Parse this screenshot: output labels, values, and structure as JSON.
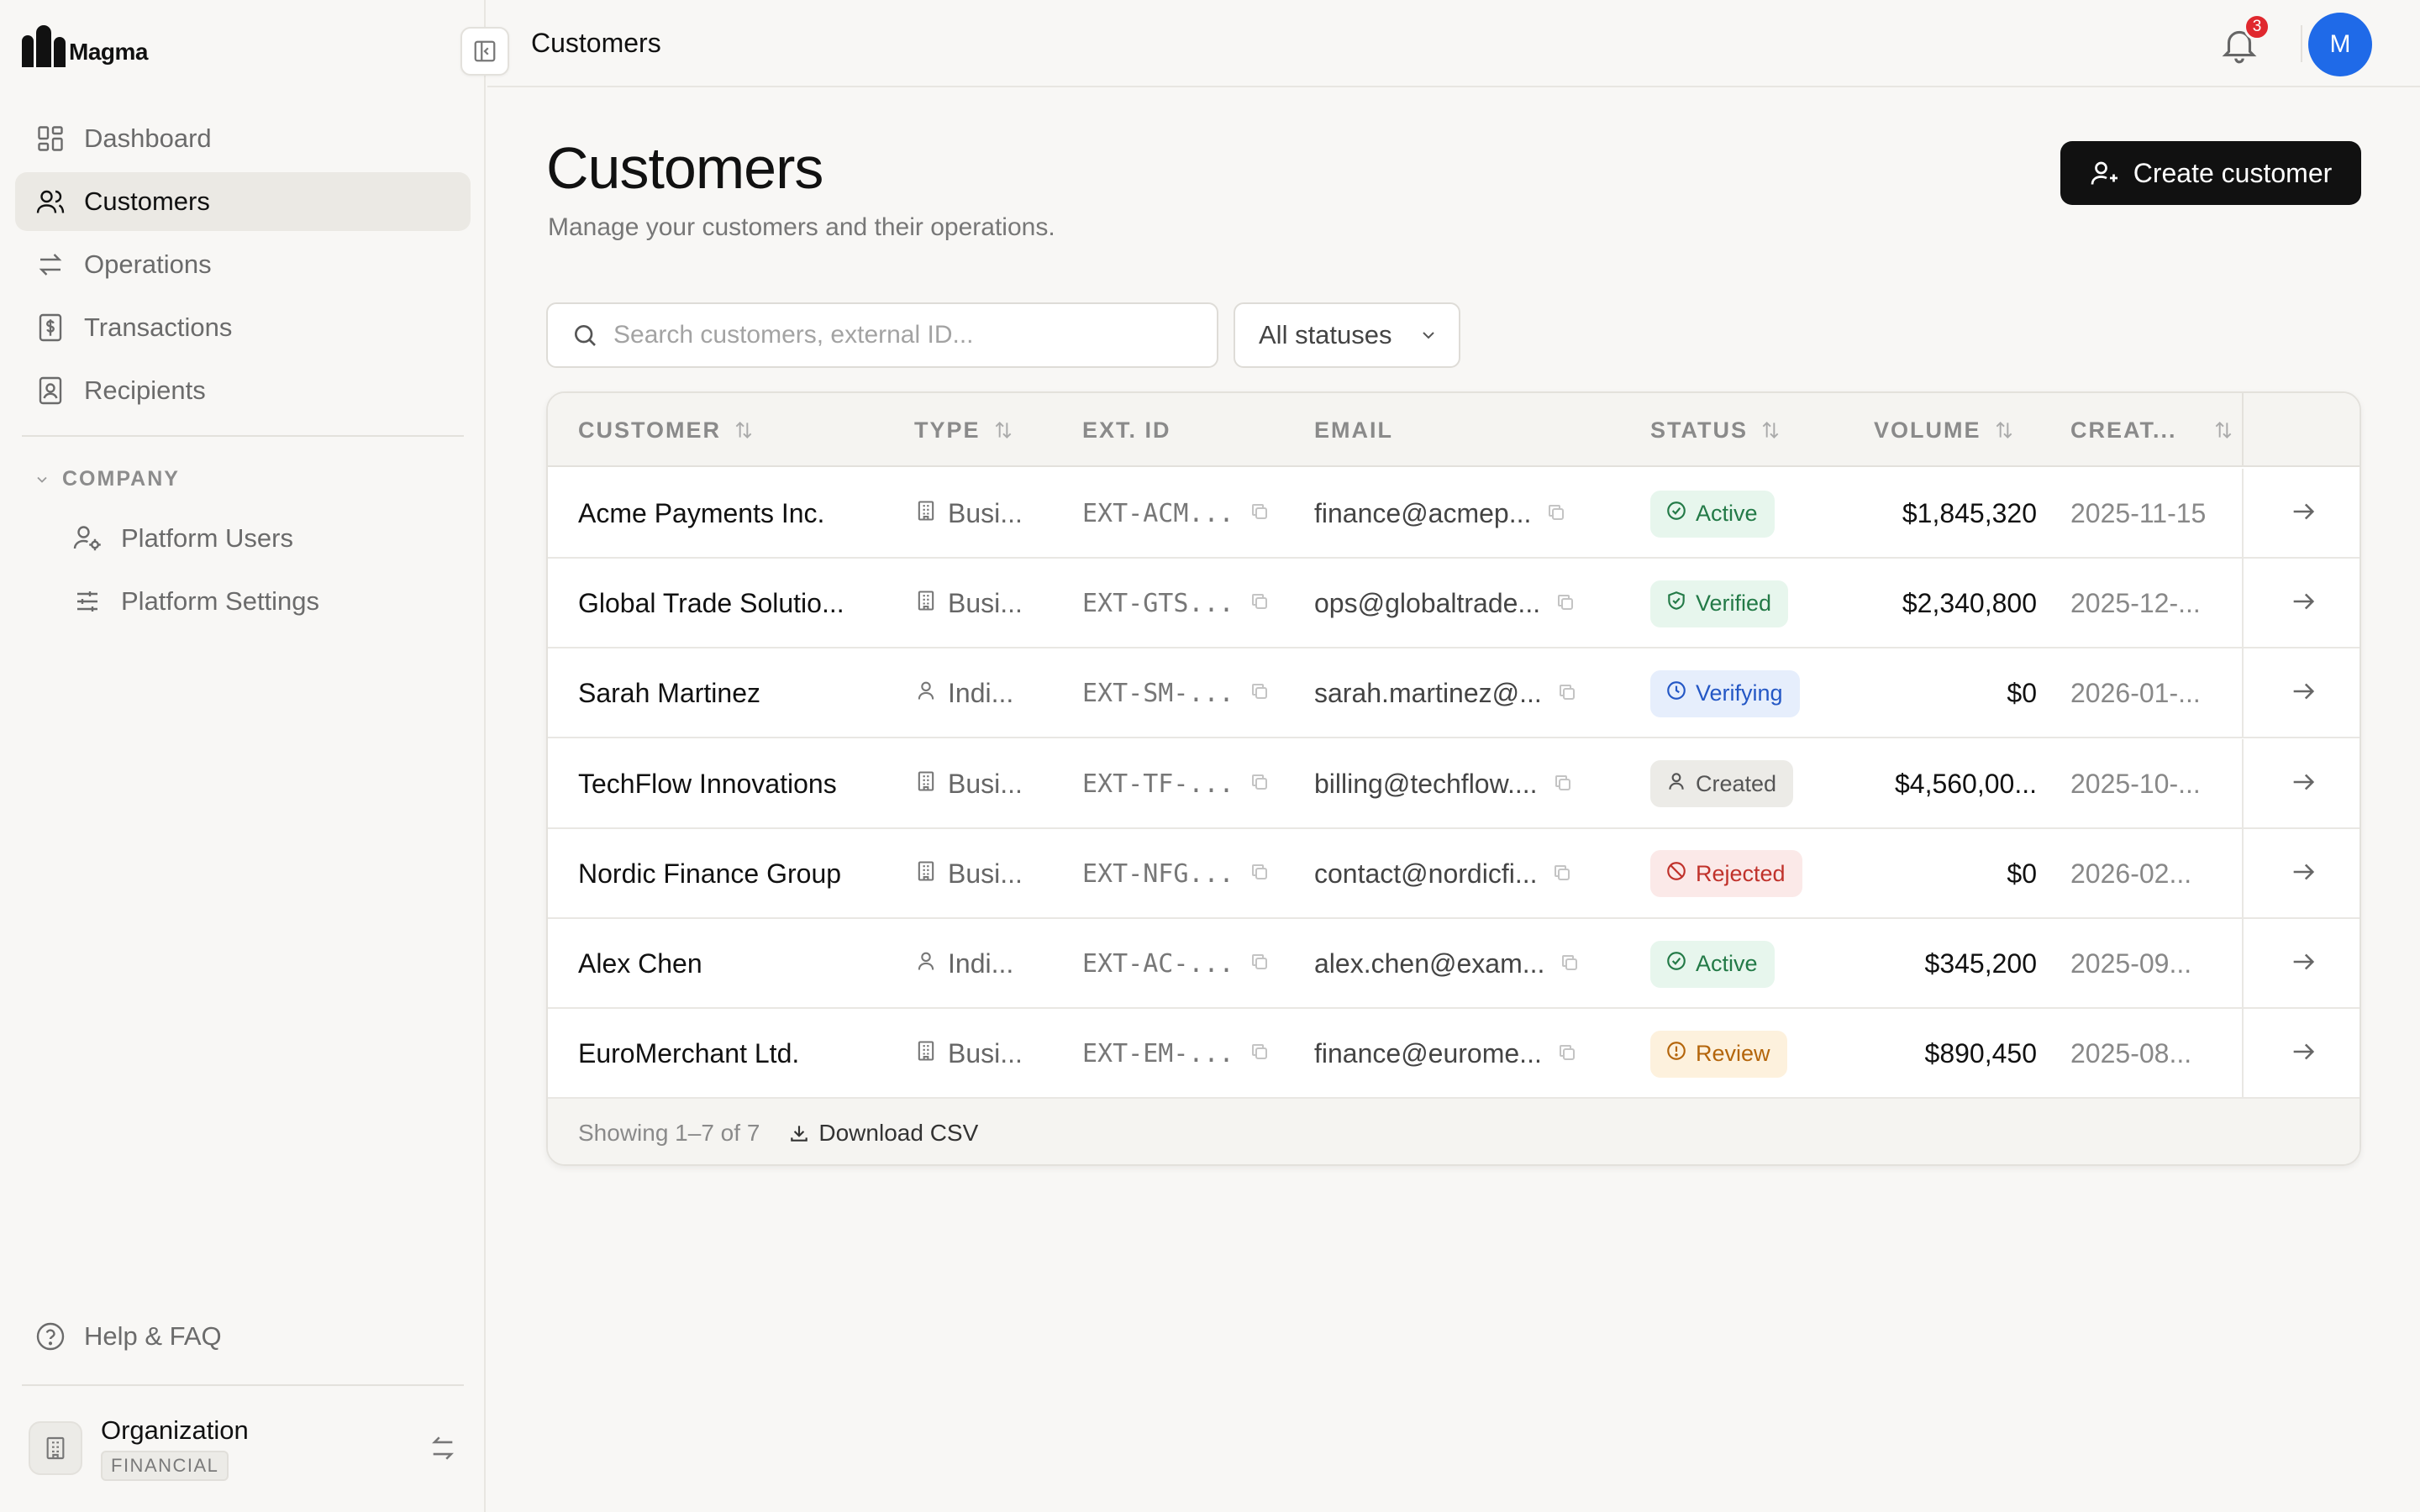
{
  "app": {
    "logo_text": "Magma",
    "accent_color": "#111111",
    "avatar_color": "#1f6ae8"
  },
  "sidebar": {
    "items": [
      {
        "label": "Dashboard",
        "icon": "dashboard-icon",
        "active": false
      },
      {
        "label": "Customers",
        "icon": "users-icon",
        "active": true
      },
      {
        "label": "Operations",
        "icon": "arrows-exchange-icon",
        "active": false
      },
      {
        "label": "Transactions",
        "icon": "receipt-dollar-icon",
        "active": false
      },
      {
        "label": "Recipients",
        "icon": "contact-card-icon",
        "active": false
      }
    ],
    "section_label": "COMPANY",
    "sub_items": [
      {
        "label": "Platform Users",
        "icon": "user-gear-icon"
      },
      {
        "label": "Platform Settings",
        "icon": "sliders-icon"
      }
    ],
    "help_label": "Help & FAQ",
    "org": {
      "name": "Organization",
      "badge": "FINANCIAL"
    }
  },
  "topbar": {
    "breadcrumb": "Customers",
    "notification_count": "3",
    "avatar_initial": "M"
  },
  "page": {
    "title": "Customers",
    "subtitle": "Manage your customers and their operations.",
    "create_button": "Create customer",
    "search_placeholder": "Search customers, external ID...",
    "status_filter": "All statuses"
  },
  "table": {
    "headers": {
      "customer": "CUSTOMER",
      "type": "TYPE",
      "ext_id": "EXT. ID",
      "email": "EMAIL",
      "status": "STATUS",
      "volume": "VOLUME",
      "created": "CREAT..."
    },
    "rows": [
      {
        "name": "Acme Payments Inc.",
        "type": "Busi...",
        "type_icon": "building-icon",
        "ext_id": "EXT-ACM...",
        "email": "finance@acmep...",
        "status": "Active",
        "status_kind": "active",
        "volume": "$1,845,320",
        "created": "2025-11-15"
      },
      {
        "name": "Global Trade Solutio...",
        "type": "Busi...",
        "type_icon": "building-icon",
        "ext_id": "EXT-GTS...",
        "email": "ops@globaltrade...",
        "status": "Verified",
        "status_kind": "verified",
        "volume": "$2,340,800",
        "created": "2025-12-..."
      },
      {
        "name": "Sarah Martinez",
        "type": "Indi...",
        "type_icon": "person-icon",
        "ext_id": "EXT-SM-...",
        "email": "sarah.martinez@...",
        "status": "Verifying",
        "status_kind": "verifying",
        "volume": "$0",
        "created": "2026-01-..."
      },
      {
        "name": "TechFlow Innovations",
        "type": "Busi...",
        "type_icon": "building-icon",
        "ext_id": "EXT-TF-...",
        "email": "billing@techflow....",
        "status": "Created",
        "status_kind": "created",
        "volume": "$4,560,00...",
        "created": "2025-10-..."
      },
      {
        "name": "Nordic Finance Group",
        "type": "Busi...",
        "type_icon": "building-icon",
        "ext_id": "EXT-NFG...",
        "email": "contact@nordicfi...",
        "status": "Rejected",
        "status_kind": "rejected",
        "volume": "$0",
        "created": "2026-02..."
      },
      {
        "name": "Alex Chen",
        "type": "Indi...",
        "type_icon": "person-icon",
        "ext_id": "EXT-AC-...",
        "email": "alex.chen@exam...",
        "status": "Active",
        "status_kind": "active",
        "volume": "$345,200",
        "created": "2025-09..."
      },
      {
        "name": "EuroMerchant Ltd.",
        "type": "Busi...",
        "type_icon": "building-icon",
        "ext_id": "EXT-EM-...",
        "email": "finance@eurome...",
        "status": "Review",
        "status_kind": "review",
        "volume": "$890,450",
        "created": "2025-08..."
      }
    ],
    "footer": {
      "showing": "Showing 1–7 of 7",
      "download": "Download CSV"
    }
  }
}
